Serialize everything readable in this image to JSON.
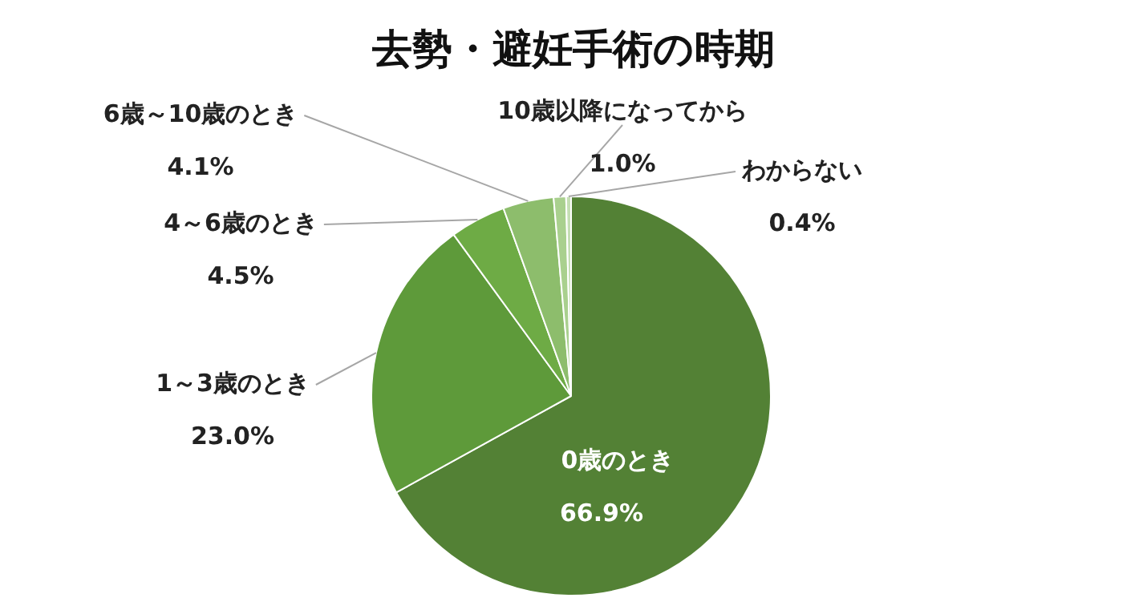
{
  "chart_data": {
    "type": "pie",
    "title": "去勢・避妊手術の時期",
    "categories": [
      "0歳のとき",
      "1～3歳のとき",
      "4～6歳のとき",
      "6歳～10歳のとき",
      "10歳以降になってから",
      "わからない"
    ],
    "values": [
      66.9,
      23.0,
      4.5,
      4.1,
      1.0,
      0.4
    ],
    "value_labels": [
      "66.9%",
      "23.0%",
      "4.5%",
      "4.1%",
      "1.0%",
      "0.4%"
    ],
    "colors": [
      "#538135",
      "#5e9a3a",
      "#6eab45",
      "#8dbd6c",
      "#a9d08e",
      "#c5dfb4"
    ],
    "legend": false
  }
}
